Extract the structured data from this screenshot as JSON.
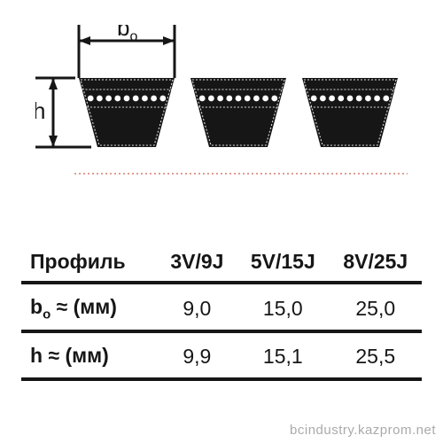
{
  "diagram": {
    "type": "infographic",
    "label_width": "b",
    "label_width_sub": "o",
    "label_height": "h",
    "belt_count": 3,
    "belt_geometry": {
      "top_width": 108,
      "bottom_width": 66,
      "height": 78,
      "gap": 18
    },
    "colors": {
      "belt_fill": "#161616",
      "belt_outline_light": "#dcdcdc",
      "dimension_line": "#161616",
      "dot_fill": "#ffffff",
      "divider_red": "#c03a2a",
      "background": "#ffffff"
    },
    "stroke": {
      "dimension_width": 3,
      "outline_width": 1.1
    },
    "font": {
      "label_size": 26,
      "label_family": "Arial"
    }
  },
  "table": {
    "type": "table",
    "header_label": "Профиль",
    "columns": [
      "3V/9J",
      "5V/15J",
      "8V/25J"
    ],
    "rows": [
      {
        "label_main": "b",
        "label_sub": "o",
        "label_tail": " ≈ (мм)",
        "cells": [
          "9,0",
          "15,0",
          "25,0"
        ]
      },
      {
        "label_main": "h ",
        "label_sub": "",
        "label_tail": " ≈ (мм)",
        "cells": [
          "9,9",
          "15,1",
          "25,5"
        ]
      }
    ],
    "colors": {
      "text": "#161616",
      "rule": "#161616"
    },
    "fontsize": 23,
    "rule_thickness": 4
  },
  "watermark": "bcindustry.kazprom.net"
}
